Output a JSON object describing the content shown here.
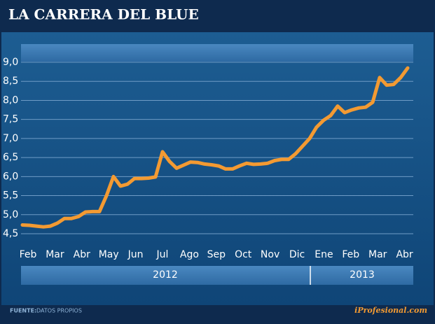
{
  "chart_data": {
    "type": "line",
    "title": "LA CARRERA DEL BLUE",
    "xtick_labels": [
      "Feb",
      "Mar",
      "Abr",
      "May",
      "Jun",
      "Jul",
      "Ago",
      "Sep",
      "Oct",
      "Nov",
      "Dic",
      "Ene",
      "Feb",
      "Mar",
      "Abr"
    ],
    "year_labels": [
      "2012",
      "2013"
    ],
    "series": [
      {
        "color": "#f39a32",
        "values": [
          4.73,
          4.72,
          4.7,
          4.68,
          4.7,
          4.78,
          4.9,
          4.9,
          4.95,
          5.07,
          5.08,
          5.08,
          5.5,
          6.0,
          5.75,
          5.8,
          5.95,
          5.95,
          5.96,
          5.99,
          6.65,
          6.4,
          6.22,
          6.3,
          6.38,
          6.37,
          6.33,
          6.31,
          6.28,
          6.2,
          6.2,
          6.28,
          6.35,
          6.32,
          6.33,
          6.35,
          6.42,
          6.45,
          6.45,
          6.6,
          6.8,
          7.0,
          7.3,
          7.48,
          7.6,
          7.85,
          7.68,
          7.75,
          7.8,
          7.82,
          7.95,
          8.6,
          8.4,
          8.42,
          8.6,
          8.85
        ]
      }
    ],
    "ylim": [
      4.5,
      9.0
    ],
    "yticks": [
      {
        "value": 4.5,
        "label": "4,5"
      },
      {
        "value": 5,
        "label": "5,0"
      },
      {
        "value": 5.5,
        "label": "5,5"
      },
      {
        "value": 6,
        "label": "6,0"
      },
      {
        "value": 6.5,
        "label": "6,5"
      },
      {
        "value": 7,
        "label": "7,0"
      },
      {
        "value": 7.5,
        "label": "7,5"
      },
      {
        "value": 8,
        "label": "8,0"
      },
      {
        "value": 8.5,
        "label": "8,5"
      },
      {
        "value": 9,
        "label": "9,0"
      }
    ],
    "grid": true,
    "source_label": "FUENTE:",
    "source": "DATOS PROPIOS",
    "brand": "iProfesional.com"
  }
}
